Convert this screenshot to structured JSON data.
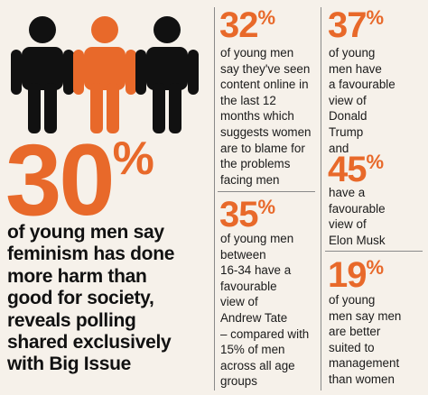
{
  "headline": {
    "number": "30",
    "unit": "%",
    "lines": [
      "of young men say",
      "feminism has done",
      "more harm than",
      "good for society,",
      "reveals polling",
      "shared exclusively",
      "with Big Issue"
    ]
  },
  "stats": [
    {
      "number": "32",
      "unit": "%",
      "lines": [
        "of young men",
        "say they've seen",
        "content online in",
        "the last 12",
        "months which",
        "suggests women",
        "are to blame for",
        "the problems",
        "facing men"
      ]
    },
    {
      "number": "35",
      "unit": "%",
      "lines": [
        "of young men",
        "between",
        "16-34 have a",
        "favourable",
        "view of",
        "Andrew Tate",
        "– compared with",
        "15% of men",
        "across all age",
        "groups"
      ]
    },
    {
      "number": "37",
      "unit": "%",
      "lines": [
        "of young",
        "men have",
        "a favourable",
        "view of",
        "Donald",
        "Trump",
        "and"
      ]
    },
    {
      "number": "45",
      "unit": "%",
      "lines": [
        "have a",
        "favourable",
        "view of",
        "Elon Musk"
      ]
    },
    {
      "number": "19",
      "unit": "%",
      "lines": [
        "of young",
        "men say men",
        "are better",
        "suited to",
        "management",
        "than women"
      ]
    }
  ]
}
